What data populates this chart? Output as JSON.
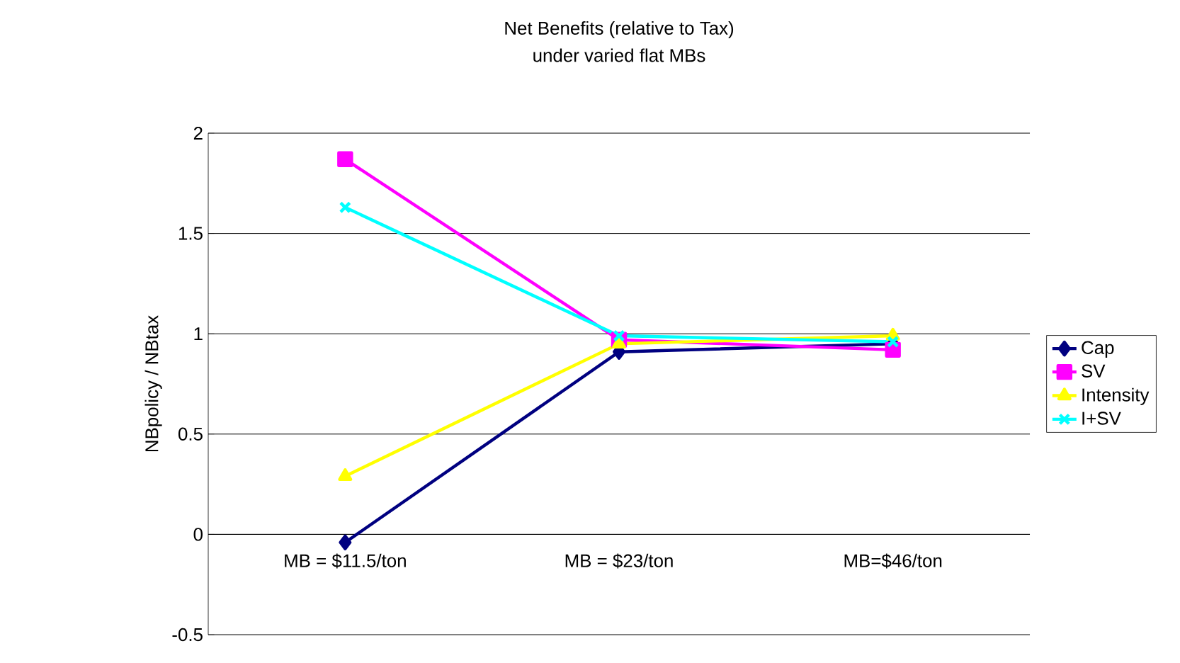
{
  "chart_data": {
    "type": "line",
    "title": "Net Benefits (relative to Tax)",
    "subtitle": "under varied flat MBs",
    "ylabel": "NBpolicy / NBtax",
    "categories": [
      "MB = $11.5/ton",
      "MB = $23/ton",
      "MB=$46/ton"
    ],
    "series": [
      {
        "name": "Cap",
        "color": "#000080",
        "marker": "diamond",
        "values": [
          -0.04,
          0.91,
          0.95
        ]
      },
      {
        "name": "SV",
        "color": "#ff00ff",
        "marker": "square",
        "values": [
          1.87,
          0.97,
          0.92
        ]
      },
      {
        "name": "Intensity",
        "color": "#ffff00",
        "marker": "triangle",
        "values": [
          0.29,
          0.95,
          0.99
        ]
      },
      {
        "name": "I+SV",
        "color": "#00ffff",
        "marker": "cross",
        "values": [
          1.63,
          0.99,
          0.96
        ]
      }
    ],
    "ylim": [
      -0.5,
      2
    ],
    "yticks": [
      -0.5,
      0,
      0.5,
      1,
      1.5,
      2
    ],
    "grid": "y",
    "legend": "right"
  }
}
